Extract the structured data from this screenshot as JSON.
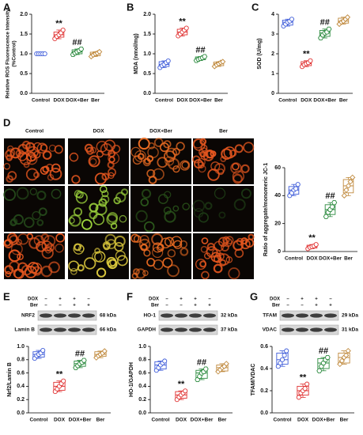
{
  "chart_data": [
    {
      "type": "box",
      "panel": "A",
      "ylabel": [
        "Relative ROS Fluorescence Intensity",
        "(%Control)"
      ],
      "ylim": [
        0,
        2
      ],
      "yticks": [
        {
          "value": 0,
          "label": "0.0"
        },
        {
          "value": 0.5,
          "label": "0.5"
        },
        {
          "value": 1,
          "label": "1.0"
        },
        {
          "value": 1.5,
          "label": "1.5"
        },
        {
          "value": 2,
          "label": "2.0"
        }
      ],
      "groups": [
        {
          "name": "Control",
          "color": "#3d5bd9",
          "points": [
            1.0,
            1.0,
            1.0,
            1.0,
            1.0
          ],
          "box": [
            1.0,
            1.0,
            1.0,
            1.0,
            1.0
          ]
        },
        {
          "name": "DOX",
          "color": "#e03131",
          "points": [
            1.38,
            1.44,
            1.48,
            1.53,
            1.6
          ],
          "box": [
            1.38,
            1.42,
            1.48,
            1.55,
            1.6
          ],
          "mark": "**"
        },
        {
          "name": "DOX+Ber",
          "color": "#2b8a3e",
          "points": [
            0.98,
            1.02,
            1.05,
            1.08,
            1.12
          ],
          "box": [
            0.98,
            1.0,
            1.05,
            1.1,
            1.12
          ],
          "mark": "##"
        },
        {
          "name": "Ber",
          "color": "#c08a3e",
          "points": [
            0.93,
            0.97,
            1.0,
            1.02,
            1.05
          ],
          "box": [
            0.93,
            0.95,
            1.0,
            1.04,
            1.05
          ]
        }
      ]
    },
    {
      "type": "box",
      "panel": "B",
      "ylabel": "MDA (nmol/mg)",
      "ylim": [
        0,
        2
      ],
      "yticks": [
        {
          "value": 0,
          "label": "0.0"
        },
        {
          "value": 0.5,
          "label": "0.5"
        },
        {
          "value": 1,
          "label": "1.0"
        },
        {
          "value": 1.5,
          "label": "1.5"
        },
        {
          "value": 2,
          "label": "2.0"
        }
      ],
      "groups": [
        {
          "name": "Control",
          "color": "#3d5bd9",
          "points": [
            0.65,
            0.7,
            0.73,
            0.78,
            0.82
          ],
          "box": [
            0.65,
            0.68,
            0.73,
            0.8,
            0.82
          ]
        },
        {
          "name": "DOX",
          "color": "#e03131",
          "points": [
            1.45,
            1.5,
            1.55,
            1.6,
            1.65
          ],
          "box": [
            1.45,
            1.48,
            1.55,
            1.62,
            1.65
          ],
          "mark": "**"
        },
        {
          "name": "DOX+Ber",
          "color": "#2b8a3e",
          "points": [
            0.83,
            0.86,
            0.88,
            0.9,
            0.93
          ],
          "box": [
            0.83,
            0.85,
            0.88,
            0.92,
            0.93
          ],
          "mark": "##"
        },
        {
          "name": "Ber",
          "color": "#c08a3e",
          "points": [
            0.68,
            0.72,
            0.75,
            0.78,
            0.8
          ],
          "box": [
            0.68,
            0.7,
            0.75,
            0.79,
            0.8
          ]
        }
      ]
    },
    {
      "type": "box",
      "panel": "C",
      "ylabel": "SOD (U/mg)",
      "ylim": [
        0,
        4
      ],
      "yticks": [
        0,
        1,
        2,
        3,
        4
      ],
      "groups": [
        {
          "name": "Control",
          "color": "#3d5bd9",
          "points": [
            3.4,
            3.5,
            3.6,
            3.65,
            3.75
          ],
          "box": [
            3.4,
            3.45,
            3.6,
            3.7,
            3.75
          ]
        },
        {
          "name": "DOX",
          "color": "#e03131",
          "points": [
            1.35,
            1.45,
            1.5,
            1.55,
            1.65
          ],
          "box": [
            1.35,
            1.4,
            1.5,
            1.6,
            1.65
          ],
          "mark": "**"
        },
        {
          "name": "DOX+Ber",
          "color": "#2b8a3e",
          "points": [
            2.8,
            2.95,
            3.05,
            3.1,
            3.25
          ],
          "box": [
            2.8,
            2.88,
            3.05,
            3.18,
            3.25
          ],
          "mark": "##"
        },
        {
          "name": "Ber",
          "color": "#c08a3e",
          "points": [
            3.5,
            3.6,
            3.65,
            3.75,
            3.85
          ],
          "box": [
            3.5,
            3.55,
            3.65,
            3.8,
            3.85
          ]
        }
      ]
    },
    {
      "type": "box",
      "ylabel": "Ratio of aggregate/monomeric JC-1",
      "ylim": [
        0,
        60
      ],
      "yticks": [
        0,
        20,
        40,
        60
      ],
      "groups": [
        {
          "name": "Control",
          "color": "#3d5bd9",
          "points": [
            40,
            42,
            44,
            45,
            48
          ],
          "box": [
            40,
            41,
            44,
            46.5,
            48
          ]
        },
        {
          "name": "DOX",
          "color": "#e03131",
          "points": [
            2,
            3,
            3.5,
            4,
            5
          ],
          "box": [
            2,
            2.5,
            3.5,
            4.5,
            5
          ],
          "mark": "**"
        },
        {
          "name": "DOX+Ber",
          "color": "#2b8a3e",
          "points": [
            25,
            28,
            30,
            32,
            35
          ],
          "box": [
            25,
            26.5,
            30,
            33.5,
            35
          ],
          "mark": "##"
        },
        {
          "name": "Ber",
          "color": "#c08a3e",
          "points": [
            40,
            44,
            47,
            50,
            53
          ],
          "box": [
            40,
            42,
            47,
            51.5,
            53
          ]
        }
      ]
    },
    {
      "type": "box",
      "panel": "E",
      "ylabel": "Nrf2/Lamin B",
      "ylim": [
        0,
        1
      ],
      "yticks": [
        {
          "value": 0,
          "label": "0.0"
        },
        {
          "value": 0.2,
          "label": "0.2"
        },
        {
          "value": 0.4,
          "label": "0.4"
        },
        {
          "value": 0.6,
          "label": "0.6"
        },
        {
          "value": 0.8,
          "label": "0.8"
        },
        {
          "value": 1,
          "label": "1.0"
        }
      ],
      "groups": [
        {
          "name": "Control",
          "color": "#3d5bd9",
          "points": [
            0.82,
            0.86,
            0.88,
            0.9,
            0.94
          ],
          "box": [
            0.82,
            0.84,
            0.88,
            0.92,
            0.94
          ]
        },
        {
          "name": "DOX",
          "color": "#e03131",
          "points": [
            0.32,
            0.36,
            0.4,
            0.44,
            0.48
          ],
          "box": [
            0.32,
            0.34,
            0.4,
            0.46,
            0.48
          ],
          "mark": "**"
        },
        {
          "name": "DOX+Ber",
          "color": "#2b8a3e",
          "points": [
            0.68,
            0.71,
            0.74,
            0.76,
            0.79
          ],
          "box": [
            0.68,
            0.7,
            0.74,
            0.78,
            0.79
          ],
          "mark": "##"
        },
        {
          "name": "Ber",
          "color": "#c08a3e",
          "points": [
            0.83,
            0.86,
            0.88,
            0.9,
            0.93
          ],
          "box": [
            0.83,
            0.85,
            0.88,
            0.92,
            0.93
          ]
        }
      ]
    },
    {
      "type": "box",
      "panel": "F",
      "ylabel": "HO-1/GAPDH",
      "ylim": [
        0,
        1
      ],
      "yticks": [
        {
          "value": 0,
          "label": "0.0"
        },
        {
          "value": 0.2,
          "label": "0.2"
        },
        {
          "value": 0.4,
          "label": "0.4"
        },
        {
          "value": 0.6,
          "label": "0.6"
        },
        {
          "value": 0.8,
          "label": "0.8"
        },
        {
          "value": 1,
          "label": "1.0"
        }
      ],
      "groups": [
        {
          "name": "Control",
          "color": "#3d5bd9",
          "points": [
            0.64,
            0.68,
            0.72,
            0.75,
            0.78
          ],
          "box": [
            0.64,
            0.66,
            0.72,
            0.77,
            0.78
          ]
        },
        {
          "name": "DOX",
          "color": "#e03131",
          "points": [
            0.2,
            0.24,
            0.27,
            0.3,
            0.33
          ],
          "box": [
            0.2,
            0.22,
            0.27,
            0.32,
            0.33
          ],
          "mark": "**"
        },
        {
          "name": "DOX+Ber",
          "color": "#2b8a3e",
          "points": [
            0.5,
            0.55,
            0.6,
            0.62,
            0.66
          ],
          "box": [
            0.5,
            0.52,
            0.6,
            0.64,
            0.66
          ],
          "mark": "##"
        },
        {
          "name": "Ber",
          "color": "#c08a3e",
          "points": [
            0.62,
            0.65,
            0.68,
            0.7,
            0.74
          ],
          "box": [
            0.62,
            0.63,
            0.68,
            0.72,
            0.74
          ]
        }
      ]
    },
    {
      "type": "box",
      "panel": "G",
      "ylabel": "TFAM/VDAC",
      "ylim": [
        0,
        0.6
      ],
      "yticks": [
        {
          "value": 0,
          "label": "0.0"
        },
        {
          "value": 0.2,
          "label": "0.2"
        },
        {
          "value": 0.4,
          "label": "0.4"
        },
        {
          "value": 0.6,
          "label": "0.6"
        }
      ],
      "groups": [
        {
          "name": "Control",
          "color": "#3d5bd9",
          "points": [
            0.42,
            0.45,
            0.48,
            0.52,
            0.56
          ],
          "box": [
            0.42,
            0.44,
            0.48,
            0.54,
            0.56
          ]
        },
        {
          "name": "DOX",
          "color": "#e03131",
          "points": [
            0.14,
            0.18,
            0.2,
            0.22,
            0.26
          ],
          "box": [
            0.14,
            0.16,
            0.2,
            0.24,
            0.26
          ],
          "mark": "**"
        },
        {
          "name": "DOX+Ber",
          "color": "#2b8a3e",
          "points": [
            0.38,
            0.42,
            0.45,
            0.48,
            0.5
          ],
          "box": [
            0.38,
            0.4,
            0.45,
            0.49,
            0.5
          ],
          "mark": "##"
        },
        {
          "name": "Ber",
          "color": "#c08a3e",
          "points": [
            0.44,
            0.47,
            0.5,
            0.52,
            0.56
          ],
          "box": [
            0.44,
            0.45,
            0.5,
            0.54,
            0.56
          ]
        }
      ]
    }
  ],
  "microscopy": {
    "panel": "D",
    "columns": [
      "Control",
      "DOX",
      "DOX+Ber",
      "Ber"
    ]
  },
  "blots": [
    {
      "treatments": [
        {
          "name": "DOX",
          "signs": [
            "–",
            "+",
            "+",
            "–"
          ]
        },
        {
          "name": "Ber",
          "signs": [
            "–",
            "–",
            "+",
            "+"
          ]
        }
      ],
      "bands": [
        {
          "protein": "NRF2",
          "size": "68 kDa"
        },
        {
          "protein": "Lamin B",
          "size": "66 kDa"
        }
      ]
    },
    {
      "treatments": [
        {
          "name": "DOX",
          "signs": [
            "–",
            "+",
            "+",
            "–"
          ]
        },
        {
          "name": "Ber",
          "signs": [
            "–",
            "–",
            "+",
            "+"
          ]
        }
      ],
      "bands": [
        {
          "protein": "HO-1",
          "size": "32 kDa"
        },
        {
          "protein": "GAPDH",
          "size": "37 kDa"
        }
      ]
    },
    {
      "treatments": [
        {
          "name": "DOX",
          "signs": [
            "–",
            "+",
            "+",
            "–"
          ]
        },
        {
          "name": "Ber",
          "signs": [
            "–",
            "–",
            "+",
            "+"
          ]
        }
      ],
      "bands": [
        {
          "protein": "TFAM",
          "size": "29 kDa"
        },
        {
          "protein": "VDAC",
          "size": "31 kDa"
        }
      ]
    }
  ]
}
